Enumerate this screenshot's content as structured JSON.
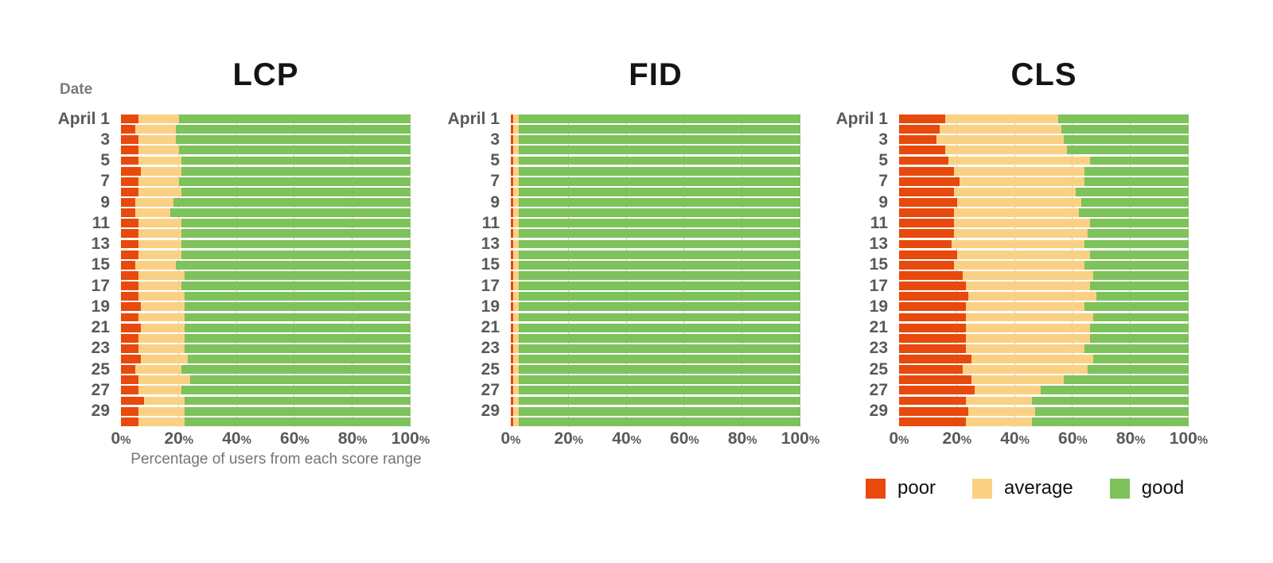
{
  "colors": {
    "poor": "#E8490D",
    "average": "#FAD184",
    "good": "#7DC25A",
    "grid": "#CCCCCC",
    "background": "#FFFFFF",
    "title_text": "#141414",
    "axis_text": "#595959",
    "muted_text": "#767676",
    "legend_text": "#111111"
  },
  "y_axis_header": "Date",
  "caption": "Percentage of users from each score range",
  "legend": [
    {
      "key": "poor",
      "label": "poor"
    },
    {
      "key": "average",
      "label": "average"
    },
    {
      "key": "good",
      "label": "good"
    }
  ],
  "chart_data": [
    {
      "type": "bar",
      "orientation": "horizontal",
      "stacked": true,
      "title": "LCP",
      "xlabel": "Percentage of users from each score range",
      "ylabel": "Date",
      "xlim": [
        0,
        100
      ],
      "grid": true,
      "tick_suffix": "%",
      "x_ticks": [
        "0",
        "20",
        "40",
        "60",
        "80",
        "100"
      ],
      "categories": [
        "April 1",
        "",
        "3",
        "",
        "5",
        "",
        "7",
        "",
        "9",
        "",
        "11",
        "",
        "13",
        "",
        "15",
        "",
        "17",
        "",
        "19",
        "",
        "21",
        "",
        "23",
        "",
        "25",
        "",
        "27",
        "",
        "29",
        ""
      ],
      "series": [
        {
          "name": "poor",
          "values": [
            6,
            5,
            6,
            6,
            6,
            7,
            6,
            6,
            5,
            5,
            6,
            6,
            6,
            6,
            5,
            6,
            6,
            6,
            7,
            6,
            7,
            6,
            6,
            7,
            5,
            6,
            6,
            8,
            6,
            6
          ]
        },
        {
          "name": "average",
          "values": [
            14,
            14,
            13,
            14,
            15,
            14,
            14,
            15,
            13,
            12,
            15,
            15,
            15,
            15,
            14,
            16,
            15,
            16,
            15,
            16,
            15,
            16,
            16,
            16,
            16,
            18,
            15,
            14,
            16,
            16
          ]
        },
        {
          "name": "good",
          "values": [
            80,
            81,
            81,
            80,
            79,
            79,
            80,
            79,
            82,
            83,
            79,
            79,
            79,
            79,
            81,
            78,
            79,
            78,
            78,
            78,
            78,
            78,
            78,
            77,
            79,
            76,
            79,
            78,
            78,
            78
          ]
        }
      ]
    },
    {
      "type": "bar",
      "orientation": "horizontal",
      "stacked": true,
      "title": "FID",
      "xlabel": "",
      "ylabel": "Date",
      "xlim": [
        0,
        100
      ],
      "grid": true,
      "tick_suffix": "%",
      "x_ticks": [
        "0",
        "20",
        "40",
        "60",
        "80",
        "100"
      ],
      "categories": [
        "April 1",
        "",
        "3",
        "",
        "5",
        "",
        "7",
        "",
        "9",
        "",
        "11",
        "",
        "13",
        "",
        "15",
        "",
        "17",
        "",
        "19",
        "",
        "21",
        "",
        "23",
        "",
        "25",
        "",
        "27",
        "",
        "29",
        ""
      ],
      "series": [
        {
          "name": "poor",
          "values": [
            0.9,
            0.9,
            0.9,
            0.9,
            0.9,
            0.9,
            0.9,
            0.9,
            0.9,
            0.9,
            0.9,
            0.9,
            0.9,
            0.9,
            0.9,
            0.9,
            0.9,
            0.9,
            0.9,
            0.9,
            0.9,
            0.9,
            0.9,
            0.9,
            0.9,
            0.9,
            0.9,
            0.9,
            0.9,
            0.9
          ]
        },
        {
          "name": "average",
          "values": [
            1.8,
            1.8,
            1.8,
            1.8,
            1.8,
            1.8,
            1.8,
            1.8,
            1.8,
            1.8,
            1.8,
            1.8,
            1.8,
            1.8,
            1.8,
            1.8,
            1.8,
            1.8,
            1.8,
            1.8,
            1.8,
            1.8,
            1.8,
            1.8,
            1.8,
            1.8,
            1.8,
            1.8,
            1.8,
            1.8
          ]
        },
        {
          "name": "good",
          "values": [
            97.3,
            97.3,
            97.3,
            97.3,
            97.3,
            97.3,
            97.3,
            97.3,
            97.3,
            97.3,
            97.3,
            97.3,
            97.3,
            97.3,
            97.3,
            97.3,
            97.3,
            97.3,
            97.3,
            97.3,
            97.3,
            97.3,
            97.3,
            97.3,
            97.3,
            97.3,
            97.3,
            97.3,
            97.3,
            97.3
          ]
        }
      ]
    },
    {
      "type": "bar",
      "orientation": "horizontal",
      "stacked": true,
      "title": "CLS",
      "xlabel": "",
      "ylabel": "Date",
      "xlim": [
        0,
        100
      ],
      "grid": true,
      "tick_suffix": "%",
      "x_ticks": [
        "0",
        "20",
        "40",
        "60",
        "80",
        "100"
      ],
      "categories": [
        "April 1",
        "",
        "3",
        "",
        "5",
        "",
        "7",
        "",
        "9",
        "",
        "11",
        "",
        "13",
        "",
        "15",
        "",
        "17",
        "",
        "19",
        "",
        "21",
        "",
        "23",
        "",
        "25",
        "",
        "27",
        "",
        "29",
        ""
      ],
      "series": [
        {
          "name": "poor",
          "values": [
            16,
            14,
            13,
            16,
            17,
            19,
            21,
            19,
            20,
            19,
            19,
            19,
            18,
            20,
            19,
            22,
            23,
            24,
            23,
            23,
            23,
            23,
            23,
            25,
            22,
            25,
            26,
            23,
            24,
            23
          ]
        },
        {
          "name": "average",
          "values": [
            39,
            42,
            44,
            42,
            49,
            45,
            43,
            42,
            43,
            43,
            47,
            46,
            46,
            46,
            45,
            45,
            43,
            44,
            41,
            44,
            43,
            43,
            41,
            42,
            43,
            32,
            23,
            23,
            23,
            23
          ]
        },
        {
          "name": "good",
          "values": [
            45,
            44,
            43,
            42,
            34,
            36,
            36,
            39,
            37,
            38,
            34,
            35,
            36,
            34,
            36,
            33,
            34,
            32,
            36,
            33,
            34,
            34,
            36,
            33,
            35,
            43,
            51,
            54,
            53,
            54
          ]
        }
      ]
    }
  ]
}
